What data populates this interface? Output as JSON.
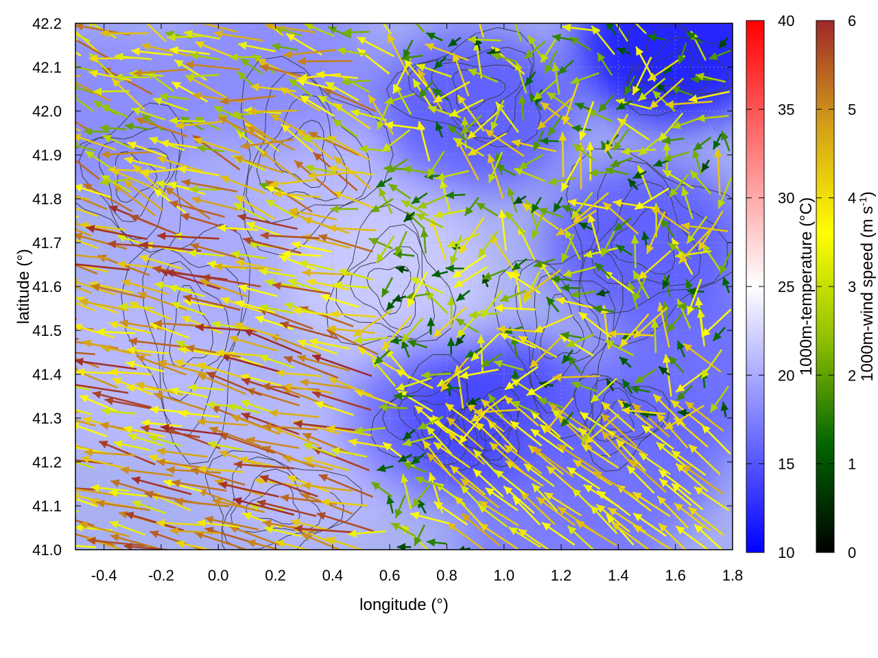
{
  "chart_data": {
    "type": "heatmap",
    "overlay": [
      "contour",
      "vector-field"
    ],
    "title": "",
    "xlabel": "longitude (°)",
    "ylabel": "latitude (°)",
    "xlim": [
      -0.5,
      1.8
    ],
    "ylim": [
      41.0,
      42.2
    ],
    "x_ticks": [
      "-0.4",
      "-0.2",
      "0.0",
      "0.2",
      "0.4",
      "0.6",
      "0.8",
      "1.0",
      "1.2",
      "1.4",
      "1.6",
      "1.8"
    ],
    "y_ticks": [
      "41.0",
      "41.1",
      "41.2",
      "41.3",
      "41.4",
      "41.5",
      "41.6",
      "41.7",
      "41.8",
      "41.9",
      "42.0",
      "42.1",
      "42.2"
    ],
    "grid": true,
    "colorbars": [
      {
        "label_text": "1000m-temperature (°C)",
        "range": [
          10,
          40
        ],
        "ticks": [
          "10",
          "15",
          "20",
          "25",
          "30",
          "35",
          "40"
        ],
        "colors": [
          "#0000ff",
          "#ffffff",
          "#ff0000"
        ]
      },
      {
        "label_main": "1000m-wind speed (m s",
        "label_sup": "-1",
        "label_close": ")",
        "range": [
          0,
          6
        ],
        "ticks": [
          "0",
          "1",
          "2",
          "3",
          "4",
          "5",
          "6"
        ],
        "colors": [
          "#000000",
          "#006400",
          "#8fbf00",
          "#ffff00",
          "#d4a017",
          "#a0282a"
        ]
      }
    ],
    "temperature_regions": [
      {
        "lon": -0.3,
        "lat": 41.4,
        "t": 21
      },
      {
        "lon": 0.0,
        "lat": 41.7,
        "t": 20
      },
      {
        "lon": 0.5,
        "lat": 41.8,
        "t": 21
      },
      {
        "lon": 0.6,
        "lat": 41.6,
        "t": 22
      },
      {
        "lon": 0.3,
        "lat": 41.2,
        "t": 21
      },
      {
        "lon": 0.8,
        "lat": 41.3,
        "t": 16
      },
      {
        "lon": 1.0,
        "lat": 41.3,
        "t": 14
      },
      {
        "lon": 0.9,
        "lat": 42.0,
        "t": 15
      },
      {
        "lon": 1.6,
        "lat": 42.15,
        "t": 11
      },
      {
        "lon": 1.5,
        "lat": 41.7,
        "t": 15
      },
      {
        "lon": 1.4,
        "lat": 41.2,
        "t": 16
      },
      {
        "lon": 1.7,
        "lat": 41.4,
        "t": 16
      },
      {
        "lon": 1.2,
        "lat": 41.0,
        "t": 17
      },
      {
        "lon": 0.2,
        "lat": 42.1,
        "t": 18
      },
      {
        "lon": -0.4,
        "lat": 42.0,
        "t": 18
      }
    ],
    "wind_regimes": [
      {
        "region": "west / south-west",
        "direction": "from east (pointing west-northwest)",
        "speed": 5.5
      },
      {
        "region": "centre",
        "direction": "mixed / westward",
        "speed": 2.5
      },
      {
        "region": "south-east",
        "direction": "pointing north-west",
        "speed": 3.8
      },
      {
        "region": "north-east",
        "direction": "mixed",
        "speed": 3.0
      }
    ]
  }
}
